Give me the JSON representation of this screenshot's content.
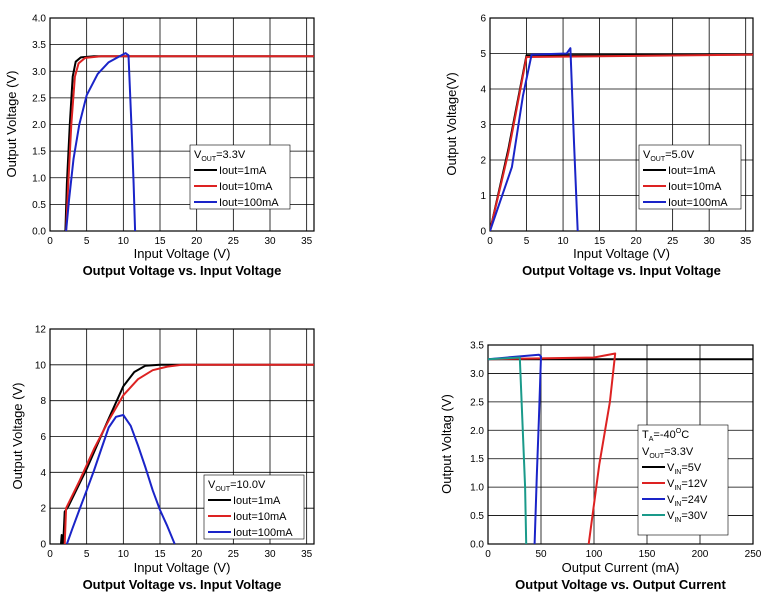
{
  "chart_data": [
    {
      "type": "line",
      "title": "Output Voltage vs. Input Voltage",
      "xlabel": "Input Voltage (V)",
      "ylabel": "Output Voltage (V)",
      "xlim": [
        0,
        36
      ],
      "ylim": [
        0,
        4.0
      ],
      "xticks": [
        0,
        5,
        10,
        15,
        20,
        25,
        30,
        35
      ],
      "yticks": [
        0,
        0.5,
        1.0,
        1.5,
        2.0,
        2.5,
        3.0,
        3.5,
        4.0
      ],
      "xtick_labels": [
        "0",
        "5",
        "10",
        "15",
        "20",
        "25",
        "30",
        "35"
      ],
      "ytick_labels": [
        "0.0",
        "0.5",
        "1.0",
        "1.5",
        "2.0",
        "2.5",
        "3.0",
        "3.5",
        "4.0"
      ],
      "legend": {
        "head": "V",
        "sub": "OUT",
        "tail": "=3.3V",
        "placement": "center-right"
      },
      "series": [
        {
          "name": "Iout=1mA",
          "color": "#000000",
          "points": [
            [
              2.1,
              0
            ],
            [
              2.3,
              0.9
            ],
            [
              2.7,
              2.0
            ],
            [
              3.1,
              2.9
            ],
            [
              3.5,
              3.18
            ],
            [
              4.2,
              3.26
            ],
            [
              6,
              3.28
            ],
            [
              36,
              3.28
            ]
          ]
        },
        {
          "name": "Iout=10mA",
          "color": "#dd2222",
          "points": [
            [
              2.2,
              0
            ],
            [
              2.5,
              0.9
            ],
            [
              2.9,
              2.0
            ],
            [
              3.4,
              2.9
            ],
            [
              3.9,
              3.15
            ],
            [
              4.8,
              3.25
            ],
            [
              7,
              3.28
            ],
            [
              36,
              3.28
            ]
          ]
        },
        {
          "name": "Iout=100mA",
          "color": "#1a24c8",
          "points": [
            [
              2.2,
              0
            ],
            [
              2.6,
              0.6
            ],
            [
              3.2,
              1.35
            ],
            [
              4,
              2.0
            ],
            [
              5,
              2.55
            ],
            [
              6.5,
              2.95
            ],
            [
              8,
              3.17
            ],
            [
              9.5,
              3.28
            ],
            [
              10.3,
              3.34
            ],
            [
              10.7,
              3.3
            ],
            [
              11.1,
              2.0
            ],
            [
              11.4,
              0.9
            ],
            [
              11.6,
              0
            ]
          ]
        }
      ]
    },
    {
      "type": "line",
      "title": "Output Voltage vs. Input Voltage",
      "xlabel": "Input Voltage (V)",
      "ylabel": "Output Voltage(V)",
      "xlim": [
        0,
        36
      ],
      "ylim": [
        0,
        6
      ],
      "xticks": [
        0,
        5,
        10,
        15,
        20,
        25,
        30,
        35
      ],
      "yticks": [
        0,
        1,
        2,
        3,
        4,
        5,
        6
      ],
      "xtick_labels": [
        "0",
        "5",
        "10",
        "15",
        "20",
        "25",
        "30",
        "35"
      ],
      "ytick_labels": [
        "0",
        "1",
        "2",
        "3",
        "4",
        "5",
        "6"
      ],
      "legend": {
        "head": "V",
        "sub": "OUT",
        "tail": "=5.0V",
        "placement": "center-right"
      },
      "series": [
        {
          "name": "Iout=1mA",
          "color": "#000000",
          "points": [
            [
              0,
              0
            ],
            [
              2.5,
              2.3
            ],
            [
              5,
              4.95
            ],
            [
              36,
              4.97
            ]
          ]
        },
        {
          "name": "Iout=10mA",
          "color": "#dd2222",
          "points": [
            [
              0,
              0
            ],
            [
              2.5,
              2.2
            ],
            [
              5,
              4.9
            ],
            [
              36,
              4.97
            ]
          ]
        },
        {
          "name": "Iout=100mA",
          "color": "#1a24c8",
          "points": [
            [
              0,
              0
            ],
            [
              3,
              1.8
            ],
            [
              4.5,
              3.8
            ],
            [
              5.7,
              4.97
            ],
            [
              10.5,
              5.0
            ],
            [
              11,
              5.15
            ],
            [
              11.5,
              2.5
            ],
            [
              12,
              0
            ]
          ]
        }
      ]
    },
    {
      "type": "line",
      "title": "Output Voltage vs. Input Voltage",
      "xlabel": "Input Voltage (V)",
      "ylabel": "Output Voltage (V)",
      "xlim": [
        0,
        36
      ],
      "ylim": [
        0,
        12
      ],
      "xticks": [
        0,
        5,
        10,
        15,
        20,
        25,
        30,
        35
      ],
      "yticks": [
        0,
        2,
        4,
        6,
        8,
        10,
        12
      ],
      "xtick_labels": [
        "0",
        "5",
        "10",
        "15",
        "20",
        "25",
        "30",
        "35"
      ],
      "ytick_labels": [
        "0",
        "2",
        "4",
        "6",
        "8",
        "10",
        "12"
      ],
      "legend": {
        "head": "V",
        "sub": "OUT",
        "tail": "=10.0V",
        "placement": "lower-right"
      },
      "series": [
        {
          "name": "Iout=1mA",
          "color": "#000000",
          "points": [
            [
              1.5,
              0
            ],
            [
              1.6,
              0.5
            ],
            [
              1.8,
              0
            ],
            [
              2,
              1.8
            ],
            [
              2.5,
              2.1
            ],
            [
              5,
              4.2
            ],
            [
              8,
              7.0
            ],
            [
              10,
              8.8
            ],
            [
              11.5,
              9.6
            ],
            [
              13,
              9.95
            ],
            [
              15,
              10.0
            ],
            [
              36,
              10.0
            ]
          ]
        },
        {
          "name": "Iout=10mA",
          "color": "#dd2222",
          "points": [
            [
              2,
              0
            ],
            [
              2.2,
              2.0
            ],
            [
              4,
              3.5
            ],
            [
              6,
              5.3
            ],
            [
              8,
              6.9
            ],
            [
              10,
              8.3
            ],
            [
              12,
              9.2
            ],
            [
              14,
              9.7
            ],
            [
              16,
              9.9
            ],
            [
              18,
              10.0
            ],
            [
              36,
              10.0
            ]
          ]
        },
        {
          "name": "Iout=100mA",
          "color": "#1a24c8",
          "points": [
            [
              2.3,
              0
            ],
            [
              3,
              0.8
            ],
            [
              4,
              1.9
            ],
            [
              5,
              3.0
            ],
            [
              6,
              4.1
            ],
            [
              7,
              5.3
            ],
            [
              8,
              6.5
            ],
            [
              9,
              7.1
            ],
            [
              10,
              7.2
            ],
            [
              11,
              6.6
            ],
            [
              12,
              5.5
            ],
            [
              13,
              4.3
            ],
            [
              14,
              3.0
            ],
            [
              15,
              1.9
            ],
            [
              16,
              1.0
            ],
            [
              17,
              0
            ]
          ]
        }
      ]
    },
    {
      "type": "line",
      "title": "Output Voltage vs. Output Current",
      "xlabel": "Output Current (mA)",
      "ylabel": "Output Voltag (V)",
      "xlim": [
        0,
        250
      ],
      "ylim": [
        0,
        3.5
      ],
      "xticks": [
        0,
        50,
        100,
        150,
        200,
        250
      ],
      "yticks": [
        0,
        0.5,
        1.0,
        1.5,
        2.0,
        2.5,
        3.0,
        3.5
      ],
      "xtick_labels": [
        "0",
        "50",
        "100",
        "150",
        "200",
        "250"
      ],
      "ytick_labels": [
        "0.0",
        "0.5",
        "1.0",
        "1.5",
        "2.0",
        "2.5",
        "3.0",
        "3.5"
      ],
      "legend": {
        "ta": "T",
        "ta_sub": "A",
        "ta_val": "=-40",
        "ta_sup": "O",
        "ta_unit": "C",
        "head": "V",
        "sub": "OUT",
        "tail": "=3.3V",
        "placement": "lower-right"
      },
      "series": [
        {
          "name": "V",
          "name_sub": "IN",
          "name_tail": "=5V",
          "color": "#000000",
          "points": [
            [
              0,
              3.25
            ],
            [
              250,
              3.25
            ]
          ]
        },
        {
          "name": "V",
          "name_sub": "IN",
          "name_tail": "=12V",
          "color": "#dd2222",
          "points": [
            [
              0,
              3.25
            ],
            [
              100,
              3.28
            ],
            [
              120,
              3.35
            ],
            [
              115,
              2.5
            ],
            [
              105,
              1.4
            ],
            [
              95,
              0
            ]
          ]
        },
        {
          "name": "V",
          "name_sub": "IN",
          "name_tail": "=24V",
          "color": "#1a24c8",
          "points": [
            [
              0,
              3.25
            ],
            [
              30,
              3.3
            ],
            [
              48,
              3.33
            ],
            [
              50,
              3.3
            ],
            [
              48,
              2.2
            ],
            [
              46,
              1.2
            ],
            [
              44,
              0
            ]
          ]
        },
        {
          "name": "V",
          "name_sub": "IN",
          "name_tail": "=30V",
          "color": "#1a9a8a",
          "points": [
            [
              0,
              3.25
            ],
            [
              30,
              3.28
            ],
            [
              35,
              1.0
            ],
            [
              36,
              0
            ]
          ]
        }
      ]
    }
  ]
}
